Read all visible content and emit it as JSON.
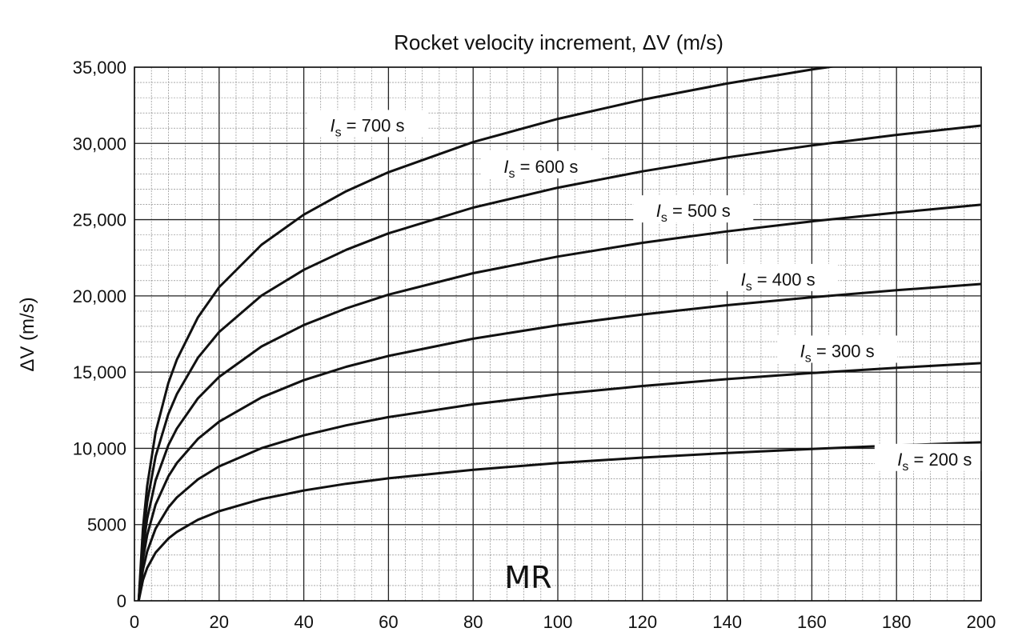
{
  "chart_data": {
    "type": "line",
    "title": "Rocket velocity increment, ΔV (m/s)",
    "ylabel": "ΔV (m/s)",
    "xlabel": "MR",
    "xlim": [
      0,
      200
    ],
    "ylim": [
      0,
      35000
    ],
    "x_ticks": [
      0,
      20,
      40,
      60,
      80,
      100,
      120,
      140,
      160,
      180,
      200
    ],
    "y_ticks": [
      0,
      5000,
      10000,
      15000,
      20000,
      25000,
      30000,
      35000
    ],
    "y_tick_labels": [
      "0",
      "5000",
      "10,000",
      "15,000",
      "20,000",
      "25,000",
      "30,000",
      "35,000"
    ],
    "x_tick_labels": [
      "0",
      "20",
      "40",
      "60",
      "80",
      "100",
      "120",
      "140",
      "160",
      "180",
      "200"
    ],
    "grid": true,
    "x": [
      1,
      2,
      3,
      5,
      8,
      10,
      15,
      20,
      30,
      40,
      50,
      60,
      80,
      100,
      120,
      140,
      160,
      180,
      200
    ],
    "series": [
      {
        "name": "Is = 200 s",
        "label_base": "I",
        "label_sub": "s",
        "label_rest": " = 200 s",
        "values": [
          0,
          1360,
          2155,
          3158,
          4080,
          4517,
          5313,
          5877,
          6673,
          7237,
          7675,
          8033,
          8597,
          9035,
          9393,
          9695,
          9957,
          10188,
          10394
        ]
      },
      {
        "name": "Is = 300 s",
        "label_base": "I",
        "label_sub": "s",
        "label_rest": " = 300 s",
        "values": [
          0,
          2039,
          3232,
          4735,
          6118,
          6774,
          7967,
          8814,
          10010,
          10850,
          11510,
          12050,
          12890,
          13550,
          14090,
          14540,
          14940,
          15280,
          15590
        ]
      },
      {
        "name": "Is = 400 s",
        "label_base": "I",
        "label_sub": "s",
        "label_rest": " = 400 s",
        "values": [
          0,
          2719,
          4310,
          6314,
          8157,
          9032,
          10620,
          11750,
          13340,
          14470,
          15350,
          16060,
          17190,
          18070,
          18780,
          19390,
          19910,
          20370,
          20780
        ]
      },
      {
        "name": "Is = 500 s",
        "label_base": "I",
        "label_sub": "s",
        "label_rest": " = 500 s",
        "values": [
          0,
          3399,
          5387,
          7892,
          10200,
          11290,
          13280,
          14690,
          16680,
          18090,
          19180,
          20080,
          21490,
          22580,
          23480,
          24230,
          24890,
          25460,
          25980
        ]
      },
      {
        "name": "Is = 600 s",
        "label_base": "I",
        "label_sub": "s",
        "label_rest": " = 600 s",
        "values": [
          0,
          4079,
          6464,
          9470,
          12240,
          13550,
          15940,
          17630,
          20020,
          21710,
          23020,
          24100,
          25790,
          27100,
          28170,
          29080,
          29870,
          30560,
          31170
        ]
      },
      {
        "name": "Is = 700 s",
        "label_base": "I",
        "label_sub": "s",
        "label_rest": " = 700 s",
        "values": [
          0,
          4758,
          7542,
          11050,
          14280,
          15810,
          18590,
          20570,
          23350,
          25330,
          26860,
          28110,
          30090,
          31610,
          32870,
          33930,
          34850,
          35650,
          36370
        ]
      }
    ],
    "series_label_anchors": [
      {
        "x": 189,
        "y": 9300
      },
      {
        "x": 166,
        "y": 16400
      },
      {
        "x": 152,
        "y": 21100
      },
      {
        "x": 132,
        "y": 25600
      },
      {
        "x": 96,
        "y": 28500
      },
      {
        "x": 55,
        "y": 31200
      }
    ]
  }
}
